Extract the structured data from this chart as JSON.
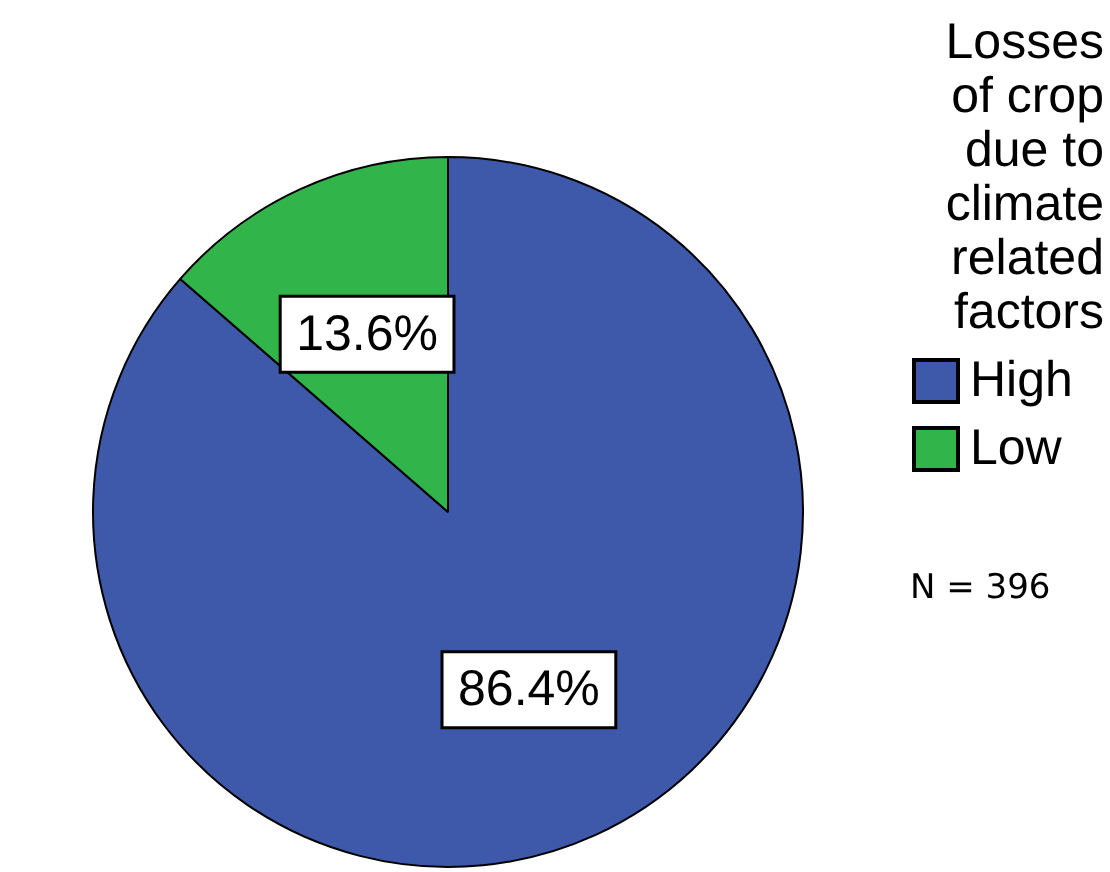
{
  "chart_data": {
    "type": "pie",
    "categories": [
      "High",
      "Low"
    ],
    "values": [
      86.4,
      13.6
    ],
    "colors": [
      "#3e59aa",
      "#31b54b"
    ],
    "value_labels": [
      "86.4%",
      "13.6%"
    ],
    "legend_title": "Losses of crop due to climate related factors",
    "legend": "top right",
    "annotations": [
      "N = 396"
    ]
  }
}
